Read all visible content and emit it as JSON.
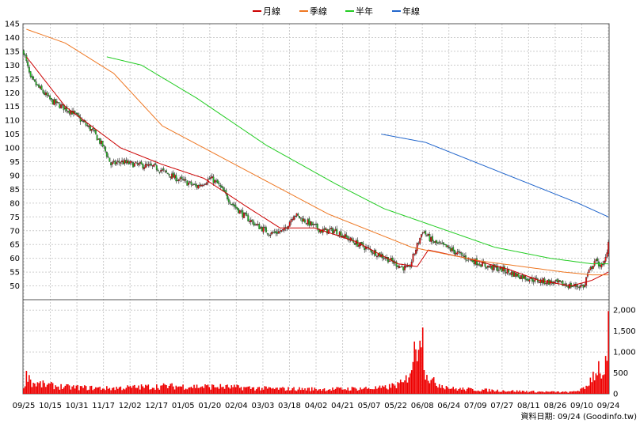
{
  "chart_data": {
    "type": "candlestick",
    "legend": [
      {
        "name": "月線",
        "color": "#cc0000"
      },
      {
        "name": "季線",
        "color": "#ee7722"
      },
      {
        "name": "半年",
        "color": "#22cc22"
      },
      {
        "name": "年線",
        "color": "#2266cc"
      }
    ],
    "price_axis": {
      "ylim": [
        45,
        145
      ],
      "ticks": [
        50,
        55,
        60,
        65,
        70,
        75,
        80,
        85,
        90,
        95,
        100,
        105,
        110,
        115,
        120,
        125,
        130,
        135,
        140,
        145
      ]
    },
    "volume_axis": {
      "ylim": [
        0,
        2250
      ],
      "ticks": [
        0,
        500,
        1000,
        1500,
        2000
      ],
      "tick_labels": [
        "0",
        "500",
        "1,000",
        "1,500",
        "2,000"
      ]
    },
    "x_labels": [
      "09/25",
      "10/15",
      "10/31",
      "11/17",
      "12/02",
      "12/17",
      "01/05",
      "01/20",
      "02/04",
      "03/03",
      "03/18",
      "04/02",
      "04/21",
      "05/07",
      "05/22",
      "06/08",
      "06/24",
      "07/09",
      "07/27",
      "08/11",
      "08/26",
      "09/10",
      "09/24"
    ],
    "close_anchors": [
      [
        0,
        135
      ],
      [
        5,
        125
      ],
      [
        20,
        117
      ],
      [
        35,
        113
      ],
      [
        50,
        106
      ],
      [
        58,
        100
      ],
      [
        63,
        94
      ],
      [
        70,
        95
      ],
      [
        80,
        94
      ],
      [
        95,
        93
      ],
      [
        110,
        89
      ],
      [
        125,
        86
      ],
      [
        135,
        89
      ],
      [
        140,
        87
      ],
      [
        150,
        80
      ],
      [
        160,
        75
      ],
      [
        168,
        72
      ],
      [
        178,
        69
      ],
      [
        188,
        70
      ],
      [
        195,
        76
      ],
      [
        205,
        73
      ],
      [
        215,
        70
      ],
      [
        225,
        70
      ],
      [
        238,
        66
      ],
      [
        250,
        63
      ],
      [
        262,
        60
      ],
      [
        272,
        57
      ],
      [
        278,
        56
      ],
      [
        282,
        62
      ],
      [
        288,
        70
      ],
      [
        295,
        66
      ],
      [
        305,
        64
      ],
      [
        320,
        60
      ],
      [
        335,
        57
      ],
      [
        345,
        56
      ],
      [
        355,
        54
      ],
      [
        370,
        52
      ],
      [
        385,
        51
      ],
      [
        395,
        50
      ],
      [
        405,
        50
      ],
      [
        406,
        53
      ],
      [
        412,
        59
      ],
      [
        418,
        57
      ],
      [
        420,
        60
      ],
      [
        422,
        66
      ]
    ],
    "ma_month": [
      [
        2,
        133
      ],
      [
        30,
        115
      ],
      [
        70,
        100
      ],
      [
        100,
        94
      ],
      [
        130,
        89
      ],
      [
        160,
        79
      ],
      [
        185,
        71
      ],
      [
        210,
        71
      ],
      [
        240,
        66
      ],
      [
        270,
        58
      ],
      [
        284,
        57
      ],
      [
        292,
        63
      ],
      [
        320,
        60
      ],
      [
        350,
        56
      ],
      [
        372,
        52
      ],
      [
        395,
        50
      ],
      [
        410,
        52
      ],
      [
        422,
        55
      ]
    ],
    "ma_quarter": [
      [
        2,
        143
      ],
      [
        30,
        138
      ],
      [
        65,
        127
      ],
      [
        100,
        108
      ],
      [
        130,
        100
      ],
      [
        160,
        92
      ],
      [
        190,
        84
      ],
      [
        220,
        76
      ],
      [
        250,
        70
      ],
      [
        280,
        64
      ],
      [
        300,
        62
      ],
      [
        330,
        59
      ],
      [
        360,
        57
      ],
      [
        390,
        55
      ],
      [
        410,
        54
      ],
      [
        422,
        54
      ]
    ],
    "ma_half": [
      [
        60,
        133
      ],
      [
        85,
        130
      ],
      [
        125,
        118
      ],
      [
        175,
        101
      ],
      [
        225,
        87
      ],
      [
        260,
        78
      ],
      [
        300,
        71
      ],
      [
        340,
        64
      ],
      [
        380,
        60
      ],
      [
        410,
        58
      ],
      [
        422,
        58
      ]
    ],
    "ma_year": [
      [
        258,
        105
      ],
      [
        290,
        102
      ],
      [
        330,
        94
      ],
      [
        370,
        86
      ],
      [
        400,
        80
      ],
      [
        422,
        75
      ]
    ],
    "volume_anchors": [
      [
        0,
        200
      ],
      [
        3,
        520
      ],
      [
        6,
        250
      ],
      [
        30,
        160
      ],
      [
        60,
        130
      ],
      [
        100,
        180
      ],
      [
        140,
        170
      ],
      [
        180,
        120
      ],
      [
        220,
        110
      ],
      [
        260,
        140
      ],
      [
        275,
        260
      ],
      [
        280,
        700
      ],
      [
        284,
        1200
      ],
      [
        286,
        1850
      ],
      [
        288,
        1300
      ],
      [
        290,
        600
      ],
      [
        294,
        300
      ],
      [
        310,
        120
      ],
      [
        340,
        80
      ],
      [
        370,
        50
      ],
      [
        395,
        40
      ],
      [
        405,
        120
      ],
      [
        410,
        400
      ],
      [
        415,
        650
      ],
      [
        419,
        380
      ],
      [
        421,
        900
      ],
      [
        422,
        1440
      ]
    ],
    "footer": "資料日期: 09/24  (Goodinfo.tw)"
  }
}
